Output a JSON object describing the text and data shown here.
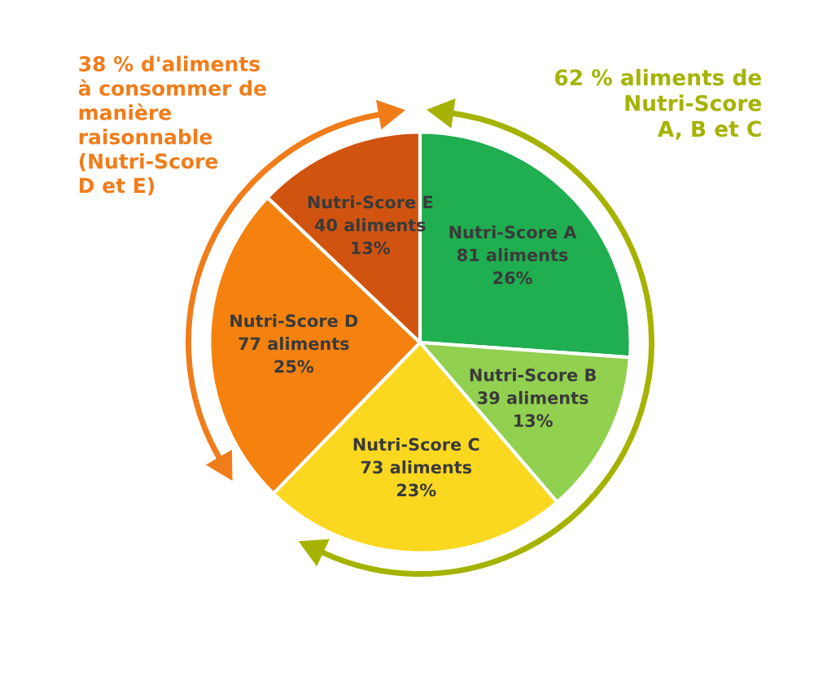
{
  "chart_data": {
    "type": "pie",
    "categories": [
      "Nutri-Score A",
      "Nutri-Score B",
      "Nutri-Score C",
      "Nutri-Score D",
      "Nutri-Score E"
    ],
    "values": [
      81,
      39,
      73,
      77,
      40
    ],
    "value_labels": [
      "81 aliments\n26%",
      "39 aliments\n13%",
      "73 aliments\n23%",
      "77 aliments\n25%",
      "40 aliments\n13%"
    ],
    "colors": [
      "#1fae50",
      "#92d050",
      "#fad820",
      "#f5820f",
      "#d05410"
    ],
    "annotations": [
      "38 % d'aliments\nà consommer de\nmanière\nraisonnable\n(Nutri-Score\nD et E)",
      "62 % aliments de\nNutri-Score\nA, B et C"
    ],
    "legend": false
  }
}
